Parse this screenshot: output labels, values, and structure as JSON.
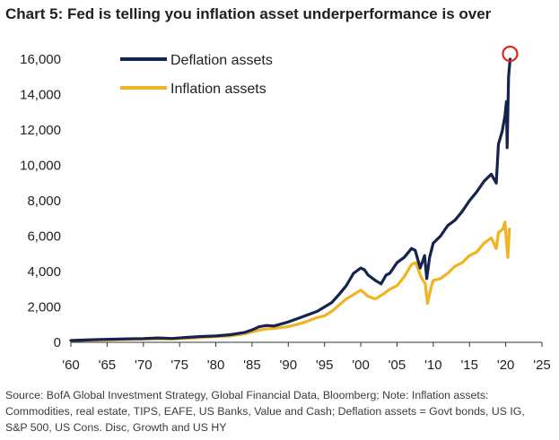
{
  "chart_data": {
    "type": "line",
    "title": "Chart 5: Fed is telling you inflation asset underperformance is over",
    "xlabel": "",
    "ylabel": "",
    "xlim": [
      1960,
      2025
    ],
    "ylim": [
      0,
      16000
    ],
    "x_ticks": [
      1960,
      1965,
      1970,
      1975,
      1980,
      1985,
      1990,
      1995,
      2000,
      2005,
      2010,
      2015,
      2020,
      2025
    ],
    "x_tick_labels": [
      "'60",
      "'65",
      "'70",
      "'75",
      "'80",
      "'85",
      "'90",
      "'95",
      "'00",
      "'05",
      "'10",
      "'15",
      "'20",
      "'25"
    ],
    "y_ticks": [
      0,
      2000,
      4000,
      6000,
      8000,
      10000,
      12000,
      14000,
      16000
    ],
    "y_tick_labels": [
      "0",
      "2,000",
      "4,000",
      "6,000",
      "8,000",
      "10,000",
      "12,000",
      "14,000",
      "16,000"
    ],
    "grid": false,
    "legend_position": "top-left",
    "series": [
      {
        "name": "Deflation assets",
        "color": "#14244f",
        "x": [
          1960,
          1962,
          1964,
          1966,
          1968,
          1970,
          1972,
          1974,
          1976,
          1978,
          1980,
          1982,
          1984,
          1985,
          1986,
          1987,
          1988,
          1990,
          1992,
          1994,
          1995,
          1996,
          1997,
          1998,
          1999,
          2000,
          2000.5,
          2001,
          2002,
          2002.8,
          2003.5,
          2004,
          2005,
          2006,
          2007,
          2007.5,
          2008.2,
          2008.8,
          2009.1,
          2009.5,
          2010,
          2011,
          2012,
          2013,
          2014,
          2015,
          2016,
          2017,
          2018,
          2018.7,
          2019,
          2019.5,
          2019.9,
          2020.1,
          2020.2,
          2020.4,
          2020.6
        ],
        "values": [
          100,
          130,
          160,
          175,
          200,
          210,
          250,
          220,
          280,
          330,
          360,
          430,
          560,
          700,
          880,
          950,
          920,
          1150,
          1450,
          1750,
          2000,
          2250,
          2700,
          3200,
          3900,
          4200,
          4100,
          3800,
          3500,
          3300,
          3800,
          3900,
          4500,
          4800,
          5300,
          5200,
          4200,
          4900,
          3600,
          4800,
          5600,
          6000,
          6600,
          6900,
          7400,
          8000,
          8500,
          9100,
          9500,
          9000,
          11200,
          11900,
          12800,
          13600,
          11000,
          15000,
          16000
        ]
      },
      {
        "name": "Inflation assets",
        "color": "#f0b323",
        "x": [
          1960,
          1962,
          1964,
          1966,
          1968,
          1970,
          1972,
          1974,
          1976,
          1978,
          1980,
          1982,
          1984,
          1985,
          1986,
          1987,
          1988,
          1990,
          1992,
          1994,
          1995,
          1996,
          1997,
          1998,
          1999,
          2000,
          2001,
          2002,
          2003,
          2004,
          2005,
          2006,
          2007,
          2007.6,
          2008.3,
          2008.9,
          2009.2,
          2009.7,
          2010,
          2011,
          2012,
          2013,
          2014,
          2015,
          2016,
          2017,
          2018,
          2018.7,
          2019,
          2019.6,
          2019.9,
          2020.1,
          2020.3,
          2020.5
        ],
        "values": [
          90,
          110,
          130,
          150,
          165,
          180,
          200,
          185,
          230,
          270,
          320,
          360,
          480,
          580,
          690,
          760,
          780,
          890,
          1100,
          1400,
          1500,
          1750,
          2100,
          2450,
          2700,
          2950,
          2600,
          2450,
          2700,
          3000,
          3200,
          3700,
          4400,
          4500,
          3700,
          3300,
          2200,
          3100,
          3500,
          3600,
          3900,
          4300,
          4500,
          4900,
          5100,
          5600,
          5900,
          5300,
          6200,
          6400,
          6800,
          5700,
          4800,
          6400
        ]
      }
    ],
    "annotations": [
      {
        "type": "circle",
        "color": "#e0231b",
        "x": 2020.6,
        "y": 16300
      }
    ],
    "source_lines": [
      "Source: BofA Global Investment Strategy, Global Financial Data, Bloomberg; Note: Inflation assets:",
      "Commodities, real estate, TIPS, EAFE, US Banks, Value and Cash; Deflation assets = Govt bonds, US IG,",
      "S&P 500, US Cons. Disc, Growth and US HY"
    ]
  }
}
